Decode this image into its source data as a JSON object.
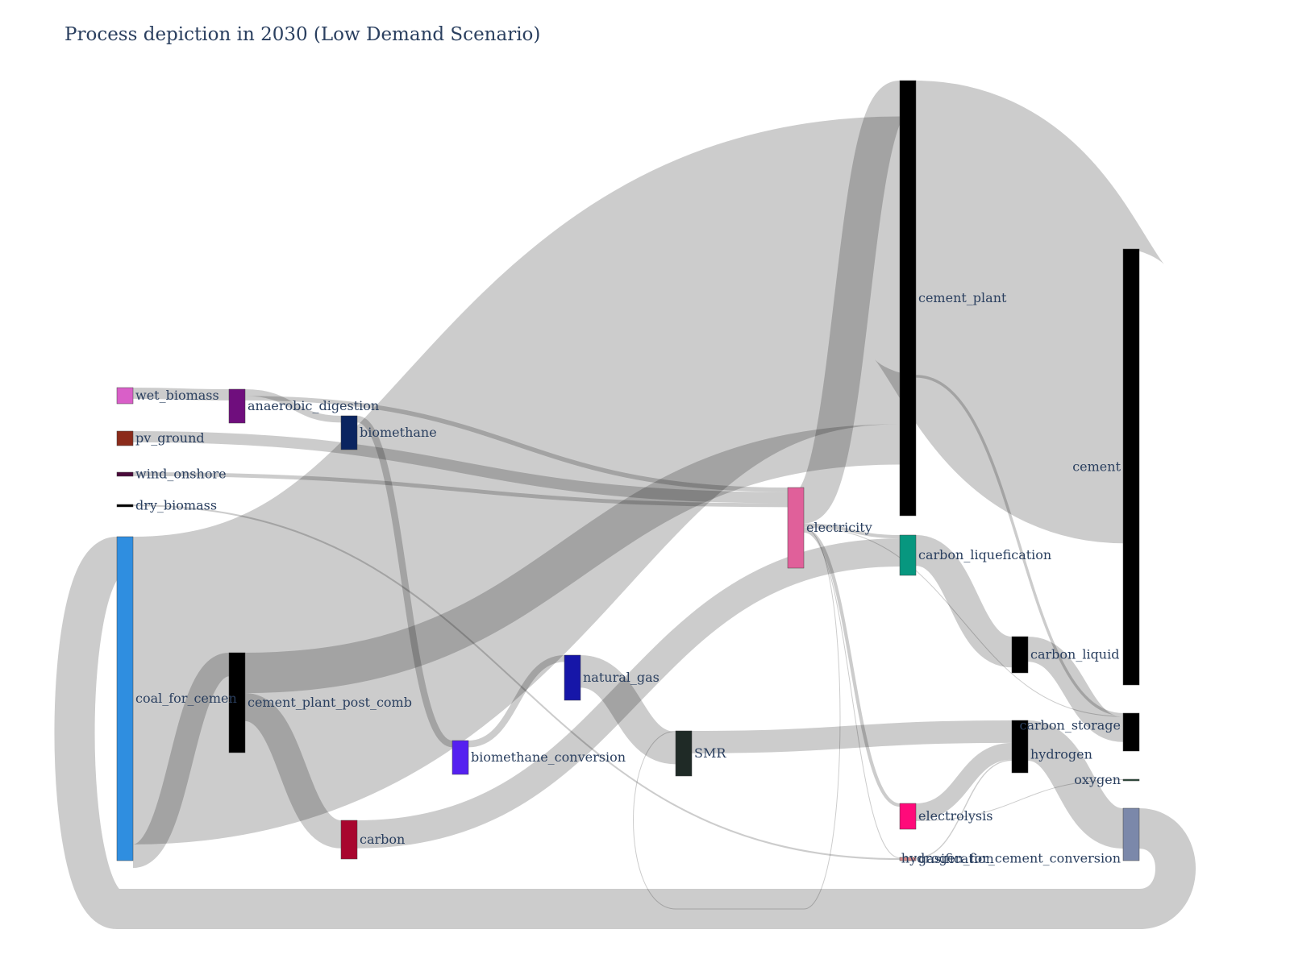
{
  "title": "Process depiction in 2030 (Low Demand Scenario)",
  "nodes": [
    {
      "id": "wet_biomass",
      "label": "wet_biomass",
      "color": "#d95fc8"
    },
    {
      "id": "pv_ground",
      "label": "pv_ground",
      "color": "#8b2b1b"
    },
    {
      "id": "wind_onshore",
      "label": "wind_onshore",
      "color": "#4a0a3a"
    },
    {
      "id": "dry_biomass",
      "label": "dry_biomass",
      "color": "#000000"
    },
    {
      "id": "coal_for_cement",
      "label": "coal_for_cemen",
      "color": "#2f8ee0"
    },
    {
      "id": "anaerobic_digestion",
      "label": "anaerobic_digestion",
      "color": "#6f0e7d"
    },
    {
      "id": "cement_plant_post_comb",
      "label": "cement_plant_post_comb",
      "color": "#000000"
    },
    {
      "id": "biomethane",
      "label": "biomethane",
      "color": "#0a2460"
    },
    {
      "id": "carbon",
      "label": "carbon",
      "color": "#a8062e"
    },
    {
      "id": "biomethane_conversion",
      "label": "biomethane_conversion",
      "color": "#5520f0"
    },
    {
      "id": "natural_gas",
      "label": "natural_gas",
      "color": "#1616a8"
    },
    {
      "id": "SMR",
      "label": "SMR",
      "color": "#1f2a26"
    },
    {
      "id": "electricity",
      "label": "electricity",
      "color": "#e0609a"
    },
    {
      "id": "cement_plant",
      "label": "cement_plant",
      "color": "#000000"
    },
    {
      "id": "carbon_liquefication",
      "label": "carbon_liquefication",
      "color": "#07977f"
    },
    {
      "id": "electrolysis",
      "label": "electrolysis",
      "color": "#ff0a7a"
    },
    {
      "id": "gasification",
      "label": "gasification",
      "color": "#d98a8a"
    },
    {
      "id": "carbon_liquid",
      "label": "carbon_liquid",
      "color": "#000000"
    },
    {
      "id": "carbon_storage",
      "label": "carbon_storage",
      "color": "#000000"
    },
    {
      "id": "hydrogen",
      "label": "hydrogen",
      "color": "#000000"
    },
    {
      "id": "cement",
      "label": "cement",
      "color": "#000000"
    },
    {
      "id": "oxygen",
      "label": "oxygen",
      "color": "#2a4a3a"
    },
    {
      "id": "hydrogen_for_cement_conversion",
      "label": "hydrogen_for_cement_conversion",
      "color": "#7b88aa"
    }
  ],
  "links": [
    {
      "source": "coal_for_cement",
      "target": "cement_plant",
      "value": 549
    },
    {
      "source": "coal_for_cement",
      "target": "cement_plant_post_comb",
      "value": 42
    },
    {
      "source": "cement_plant_post_comb",
      "target": "cement_plant",
      "value": 72
    },
    {
      "source": "cement_plant_post_comb",
      "target": "carbon",
      "value": 50
    },
    {
      "source": "wet_biomass",
      "target": "anaerobic_digestion",
      "value": 20
    },
    {
      "source": "anaerobic_digestion",
      "target": "electricity",
      "value": 8
    },
    {
      "source": "anaerobic_digestion",
      "target": "biomethane",
      "value": 12
    },
    {
      "source": "pv_ground",
      "target": "electricity",
      "value": 20
    },
    {
      "source": "wind_onshore",
      "target": "electricity",
      "value": 7
    },
    {
      "source": "dry_biomass",
      "target": "gasification",
      "value": 3
    },
    {
      "source": "biomethane",
      "target": "biomethane_conversion",
      "value": 12
    },
    {
      "source": "biomethane_conversion",
      "target": "natural_gas",
      "value": 12
    },
    {
      "source": "carbon",
      "target": "carbon_liquefication",
      "value": 50
    },
    {
      "source": "natural_gas",
      "target": "SMR",
      "value": 58
    },
    {
      "source": "electricity",
      "target": "cement_plant",
      "value": 64
    },
    {
      "source": "electricity",
      "target": "carbon_liquefication",
      "value": 6
    },
    {
      "source": "electricity",
      "target": "electrolysis",
      "value": 6
    },
    {
      "source": "electricity",
      "target": "SMR",
      "value": 1
    },
    {
      "source": "electricity",
      "target": "carbon_storage",
      "value": 1
    },
    {
      "source": "electricity",
      "target": "gasification",
      "value": 1
    },
    {
      "source": "SMR",
      "target": "hydrogen",
      "value": 40
    },
    {
      "source": "cement_plant",
      "target": "cement",
      "value": 525
    },
    {
      "source": "cement_plant",
      "target": "carbon_storage",
      "value": 5
    },
    {
      "source": "carbon_liquefication",
      "target": "carbon_liquid",
      "value": 55
    },
    {
      "source": "carbon_liquid",
      "target": "carbon_storage",
      "value": 45
    },
    {
      "source": "electrolysis",
      "target": "hydrogen",
      "value": 30
    },
    {
      "source": "electrolysis",
      "target": "oxygen",
      "value": 1
    },
    {
      "source": "gasification",
      "target": "hydrogen",
      "value": 2
    },
    {
      "source": "hydrogen",
      "target": "hydrogen_for_cement_conversion",
      "value": 72
    },
    {
      "source": "hydrogen_for_cement_conversion",
      "target": "coal_for_cement",
      "value": 72
    }
  ]
}
